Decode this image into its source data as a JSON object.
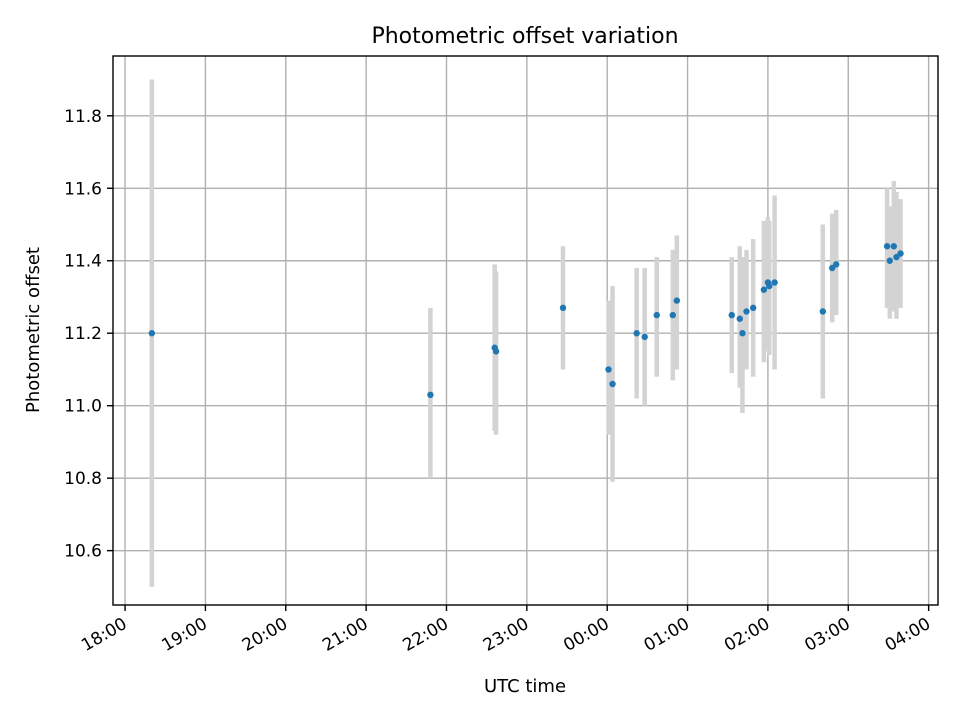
{
  "chart_data": {
    "type": "scatter",
    "title": "Photometric offset variation",
    "xlabel": "UTC time",
    "ylabel": "Photometric offset",
    "x_tick_labels": [
      "18:00",
      "19:00",
      "20:00",
      "21:00",
      "22:00",
      "23:00",
      "00:00",
      "01:00",
      "02:00",
      "03:00",
      "04:00"
    ],
    "y_tick_labels": [
      "10.6",
      "10.8",
      "11.0",
      "11.2",
      "11.4",
      "11.6",
      "11.8"
    ],
    "y_ticks": [
      10.6,
      10.8,
      11.0,
      11.2,
      11.4,
      11.6,
      11.8
    ],
    "xlim": [
      "17:51",
      "04:07"
    ],
    "ylim": [
      10.45,
      11.965
    ],
    "grid": true,
    "point_color": "#1f77b4",
    "errorbar_color": "#d3d3d3",
    "points": [
      {
        "x": "18:20",
        "y": 11.2,
        "ymin": 10.5,
        "ymax": 11.9
      },
      {
        "x": "21:48",
        "y": 11.03,
        "ymin": 10.8,
        "ymax": 11.27
      },
      {
        "x": "22:36",
        "y": 11.16,
        "ymin": 10.93,
        "ymax": 11.39
      },
      {
        "x": "22:37",
        "y": 11.15,
        "ymin": 10.92,
        "ymax": 11.37
      },
      {
        "x": "23:27",
        "y": 11.27,
        "ymin": 11.1,
        "ymax": 11.44
      },
      {
        "x": "00:01",
        "y": 11.1,
        "ymin": 10.92,
        "ymax": 11.29
      },
      {
        "x": "00:04",
        "y": 11.06,
        "ymin": 10.79,
        "ymax": 11.33
      },
      {
        "x": "00:22",
        "y": 11.2,
        "ymin": 11.02,
        "ymax": 11.38
      },
      {
        "x": "00:28",
        "y": 11.19,
        "ymin": 11.0,
        "ymax": 11.38
      },
      {
        "x": "00:37",
        "y": 11.25,
        "ymin": 11.08,
        "ymax": 11.41
      },
      {
        "x": "00:49",
        "y": 11.25,
        "ymin": 11.07,
        "ymax": 11.43
      },
      {
        "x": "00:52",
        "y": 11.29,
        "ymin": 11.1,
        "ymax": 11.47
      },
      {
        "x": "01:33",
        "y": 11.25,
        "ymin": 11.09,
        "ymax": 11.41
      },
      {
        "x": "01:39",
        "y": 11.24,
        "ymin": 11.05,
        "ymax": 11.44
      },
      {
        "x": "01:41",
        "y": 11.2,
        "ymin": 10.98,
        "ymax": 11.41
      },
      {
        "x": "01:44",
        "y": 11.26,
        "ymin": 11.1,
        "ymax": 11.43
      },
      {
        "x": "01:49",
        "y": 11.27,
        "ymin": 11.08,
        "ymax": 11.46
      },
      {
        "x": "01:57",
        "y": 11.32,
        "ymin": 11.12,
        "ymax": 11.51
      },
      {
        "x": "02:00",
        "y": 11.34,
        "ymin": 11.15,
        "ymax": 11.52
      },
      {
        "x": "02:01",
        "y": 11.33,
        "ymin": 11.14,
        "ymax": 11.51
      },
      {
        "x": "02:05",
        "y": 11.34,
        "ymin": 11.1,
        "ymax": 11.58
      },
      {
        "x": "02:41",
        "y": 11.26,
        "ymin": 11.02,
        "ymax": 11.5
      },
      {
        "x": "02:48",
        "y": 11.38,
        "ymin": 11.23,
        "ymax": 11.53
      },
      {
        "x": "02:51",
        "y": 11.39,
        "ymin": 11.25,
        "ymax": 11.54
      },
      {
        "x": "03:29",
        "y": 11.44,
        "ymin": 11.27,
        "ymax": 11.6
      },
      {
        "x": "03:31",
        "y": 11.4,
        "ymin": 11.24,
        "ymax": 11.55
      },
      {
        "x": "03:34",
        "y": 11.44,
        "ymin": 11.26,
        "ymax": 11.62
      },
      {
        "x": "03:36",
        "y": 11.41,
        "ymin": 11.24,
        "ymax": 11.59
      },
      {
        "x": "03:39",
        "y": 11.42,
        "ymin": 11.27,
        "ymax": 11.57
      }
    ]
  }
}
